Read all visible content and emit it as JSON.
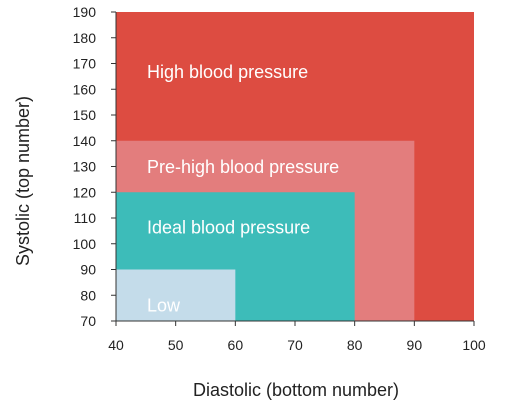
{
  "chart_data": {
    "type": "area",
    "title": "",
    "xlabel": "Diastolic (bottom number)",
    "ylabel": "Systolic (top number)",
    "xlim": [
      40,
      100
    ],
    "ylim": [
      70,
      190
    ],
    "x_ticks": [
      40,
      50,
      60,
      70,
      80,
      90,
      100
    ],
    "y_ticks": [
      70,
      80,
      90,
      100,
      110,
      120,
      130,
      140,
      150,
      160,
      170,
      180,
      190
    ],
    "grid": false,
    "zones": [
      {
        "name": "High blood pressure",
        "diastolic_max": 100,
        "systolic_max": 190,
        "color": "#dd4c41"
      },
      {
        "name": "Pre-high blood pressure",
        "diastolic_max": 90,
        "systolic_max": 140,
        "color": "#e37d7d"
      },
      {
        "name": "Ideal blood pressure",
        "diastolic_max": 80,
        "systolic_max": 120,
        "color": "#3dbcb9"
      },
      {
        "name": "Low",
        "diastolic_max": 60,
        "systolic_max": 90,
        "color": "#c4dcea"
      }
    ]
  }
}
